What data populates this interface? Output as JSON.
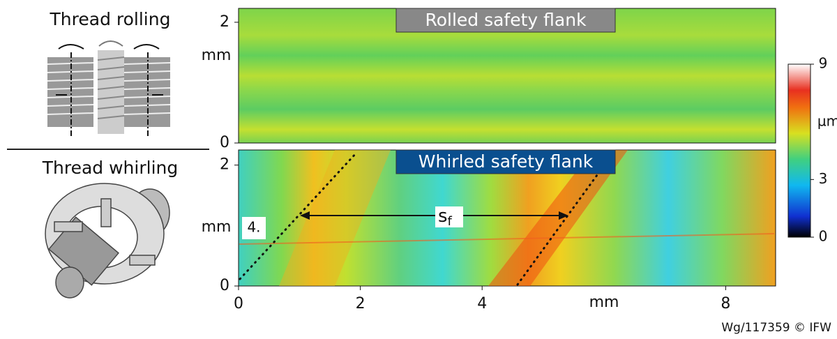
{
  "left": {
    "top_label": "Thread rolling",
    "bottom_label": "Thread whirling"
  },
  "plots": [
    {
      "title": "Rolled safety flank",
      "ylabel": "mm",
      "ylim": [
        0,
        2.23
      ],
      "yticks": [
        0,
        2
      ]
    },
    {
      "title": "Whirled safety flank",
      "ylabel": "mm",
      "ylim": [
        0,
        2.25
      ],
      "yticks": [
        0,
        2
      ],
      "marker": "4.",
      "spacing": {
        "symbol": "s",
        "subscript": "f"
      }
    }
  ],
  "xaxis": {
    "label": "mm",
    "xlim": [
      0,
      8.82
    ],
    "xticks": [
      0,
      2,
      4,
      8
    ]
  },
  "colorbar": {
    "label": "µm",
    "ticks": [
      0,
      3,
      9
    ]
  },
  "credit": "Wg/117359 © IFW"
}
